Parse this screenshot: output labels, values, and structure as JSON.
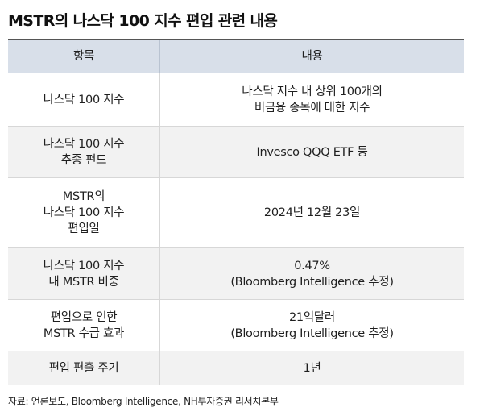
{
  "title": "MSTR의 나스닥 100 지수 편입 관련 내용",
  "table": {
    "headers": [
      "항목",
      "내용"
    ],
    "rows": [
      [
        "나스닥 100 지수",
        "나스닥 지수 내 상위 100개의\n비금융 종목에 대한 지수"
      ],
      [
        "나스닥 100 지수\n추종 펀드",
        "Invesco QQQ ETF 등"
      ],
      [
        "MSTR의\n나스닥 100 지수\n편입일",
        "2024년 12월 23일"
      ],
      [
        "나스닥 100 지수\n내 MSTR 비중",
        "0.47%\n(Bloomberg Intelligence 추정)"
      ],
      [
        "편입으로 인한\nMSTR 수급 효과",
        "21억달러\n(Bloomberg Intelligence 추정)"
      ],
      [
        "편입 편출 주기",
        "1년"
      ]
    ]
  },
  "source": "자료: 언론보도, Bloomberg Intelligence, NH투자증권 리서치본부"
}
